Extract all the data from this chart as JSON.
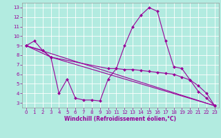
{
  "xlabel": "Windchill (Refroidissement éolien,°C)",
  "background_color": "#b2ebe0",
  "grid_color": "#ffffff",
  "line_color": "#990099",
  "spine_color": "#999999",
  "xlim": [
    -0.5,
    23.5
  ],
  "ylim": [
    2.5,
    13.5
  ],
  "xticks": [
    0,
    1,
    2,
    3,
    4,
    5,
    6,
    7,
    8,
    9,
    10,
    11,
    12,
    13,
    14,
    15,
    16,
    17,
    18,
    19,
    20,
    21,
    22,
    23
  ],
  "yticks": [
    3,
    4,
    5,
    6,
    7,
    8,
    9,
    10,
    11,
    12,
    13
  ],
  "series": [
    {
      "x": [
        0,
        1,
        2,
        3,
        4,
        5,
        6,
        7,
        8,
        9,
        10,
        11,
        12,
        13,
        14,
        15,
        16,
        17,
        18,
        19,
        20,
        21,
        22,
        23
      ],
      "y": [
        9.0,
        9.5,
        8.5,
        7.8,
        4.0,
        5.5,
        3.5,
        3.3,
        3.3,
        3.2,
        5.5,
        6.6,
        9.0,
        11.0,
        12.2,
        13.0,
        12.6,
        9.5,
        6.8,
        6.6,
        5.4,
        4.2,
        3.5,
        2.7
      ]
    },
    {
      "x": [
        0,
        2,
        3,
        10,
        11,
        12,
        13,
        14,
        15,
        16,
        17,
        18,
        19,
        20,
        21,
        22,
        23
      ],
      "y": [
        9.0,
        8.5,
        7.8,
        6.6,
        6.6,
        6.5,
        6.5,
        6.4,
        6.3,
        6.2,
        6.1,
        6.0,
        5.7,
        5.4,
        4.8,
        4.0,
        2.7
      ]
    },
    {
      "x": [
        0,
        23
      ],
      "y": [
        9.0,
        2.7
      ]
    },
    {
      "x": [
        0,
        3,
        23
      ],
      "y": [
        9.0,
        7.8,
        2.7
      ]
    }
  ]
}
